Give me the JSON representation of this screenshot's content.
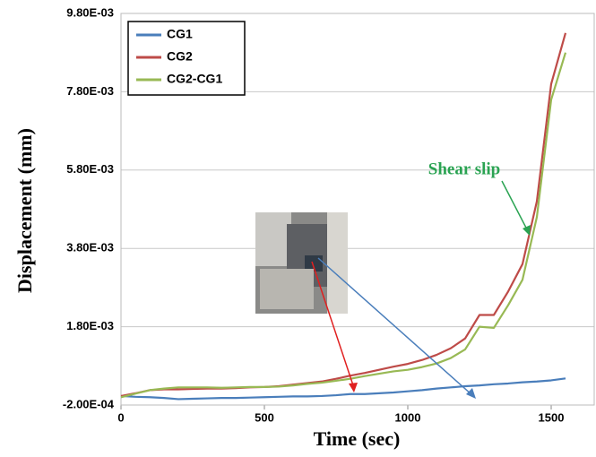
{
  "chart_data": {
    "type": "line",
    "x_label": "Time (sec)",
    "y_label": "Displacement (mm)",
    "annotation": "Shear slip",
    "x": [
      0,
      50,
      100,
      150,
      200,
      250,
      300,
      350,
      400,
      450,
      500,
      550,
      600,
      650,
      700,
      750,
      800,
      850,
      900,
      950,
      1000,
      1050,
      1100,
      1150,
      1200,
      1250,
      1300,
      1350,
      1400,
      1450,
      1500,
      1550
    ],
    "series": [
      {
        "name": "CG1",
        "color": "#4a7ebb",
        "values": [
          3e-05,
          1e-05,
          0.0,
          -2e-05,
          -5e-05,
          -4e-05,
          -3e-05,
          -2e-05,
          -2e-05,
          -1e-05,
          0.0,
          1e-05,
          2e-05,
          2e-05,
          3e-05,
          5e-05,
          8e-05,
          8e-05,
          0.0001,
          0.00012,
          0.00015,
          0.00018,
          0.00022,
          0.00025,
          0.00028,
          0.0003,
          0.00033,
          0.00035,
          0.00038,
          0.0004,
          0.00043,
          0.00048
        ]
      },
      {
        "name": "CG2",
        "color": "#be4b48",
        "values": [
          3e-05,
          0.0001,
          0.00018,
          0.0002,
          0.0002,
          0.00021,
          0.00022,
          0.00022,
          0.00023,
          0.00025,
          0.00026,
          0.00028,
          0.00032,
          0.00036,
          0.0004,
          0.00047,
          0.00055,
          0.00062,
          0.0007,
          0.00078,
          0.00085,
          0.00095,
          0.00108,
          0.00125,
          0.0015,
          0.0021,
          0.0021,
          0.0027,
          0.0034,
          0.005,
          0.008,
          0.0093
        ]
      },
      {
        "name": "CG2-CG1",
        "color": "#98b954",
        "values": [
          0.0,
          9e-05,
          0.00018,
          0.00022,
          0.00025,
          0.00025,
          0.00025,
          0.00024,
          0.00025,
          0.00026,
          0.00026,
          0.00027,
          0.0003,
          0.00034,
          0.00037,
          0.00042,
          0.00047,
          0.00054,
          0.0006,
          0.00066,
          0.0007,
          0.00077,
          0.00086,
          0.001,
          0.00122,
          0.0018,
          0.00177,
          0.00235,
          0.003,
          0.0046,
          0.0076,
          0.0088
        ]
      }
    ],
    "xlim": [
      0,
      1650
    ],
    "xticks": [
      0,
      500,
      1000,
      1500
    ],
    "ylim": [
      -0.0002,
      0.0098
    ],
    "yticks": [
      {
        "value": -0.0002,
        "label": "-2.00E-04"
      },
      {
        "value": 0.0018,
        "label": "1.80E-03"
      },
      {
        "value": 0.0038,
        "label": "3.80E-03"
      },
      {
        "value": 0.0058,
        "label": "5.80E-03"
      },
      {
        "value": 0.0078,
        "label": "7.80E-03"
      },
      {
        "value": 0.0098,
        "label": "9.80E-03"
      }
    ],
    "grid": true,
    "legend": "upper left"
  }
}
